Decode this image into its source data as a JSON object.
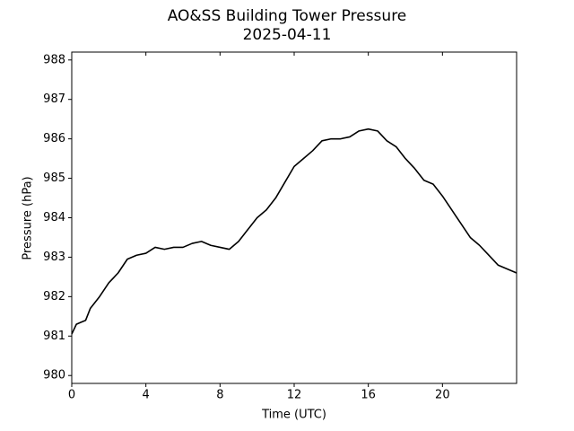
{
  "chart_data": {
    "type": "line",
    "title": "AO&SS Building Tower Pressure",
    "subtitle": "2025-04-11",
    "x_label": "Time (UTC)",
    "y_label": "Pressure (hPa)",
    "color": "#000000",
    "grid": false,
    "x": [
      0,
      0.25,
      0.5,
      0.75,
      1,
      1.5,
      2,
      2.5,
      3,
      3.5,
      4,
      4.5,
      5,
      5.5,
      6,
      6.5,
      7,
      7.5,
      8,
      8.5,
      9,
      9.5,
      10,
      10.5,
      11,
      11.5,
      12,
      12.5,
      13,
      13.5,
      14,
      14.5,
      15,
      15.5,
      16,
      16.5,
      17,
      17.5,
      18,
      18.5,
      19,
      19.5,
      20,
      20.5,
      21,
      21.5,
      22,
      22.5,
      23,
      23.5,
      24
    ],
    "values": [
      981.05,
      981.3,
      981.35,
      981.4,
      981.7,
      982.0,
      982.35,
      982.6,
      982.95,
      983.05,
      983.1,
      983.25,
      983.2,
      983.25,
      983.25,
      983.35,
      983.4,
      983.3,
      983.25,
      983.2,
      983.4,
      983.7,
      984.0,
      984.2,
      984.5,
      984.9,
      985.3,
      985.5,
      985.7,
      985.95,
      986.0,
      986.0,
      986.05,
      986.2,
      986.25,
      986.2,
      985.95,
      985.8,
      985.5,
      985.25,
      984.95,
      984.85,
      984.55,
      984.2,
      983.85,
      983.5,
      983.3,
      983.05,
      982.8,
      982.7,
      982.6
    ],
    "xlim": [
      0,
      24
    ],
    "xticks": [
      0,
      4,
      8,
      12,
      16,
      20
    ],
    "ylim": [
      979.8,
      988.2
    ],
    "yticks": [
      980,
      981,
      982,
      983,
      984,
      985,
      986,
      987,
      988
    ]
  }
}
